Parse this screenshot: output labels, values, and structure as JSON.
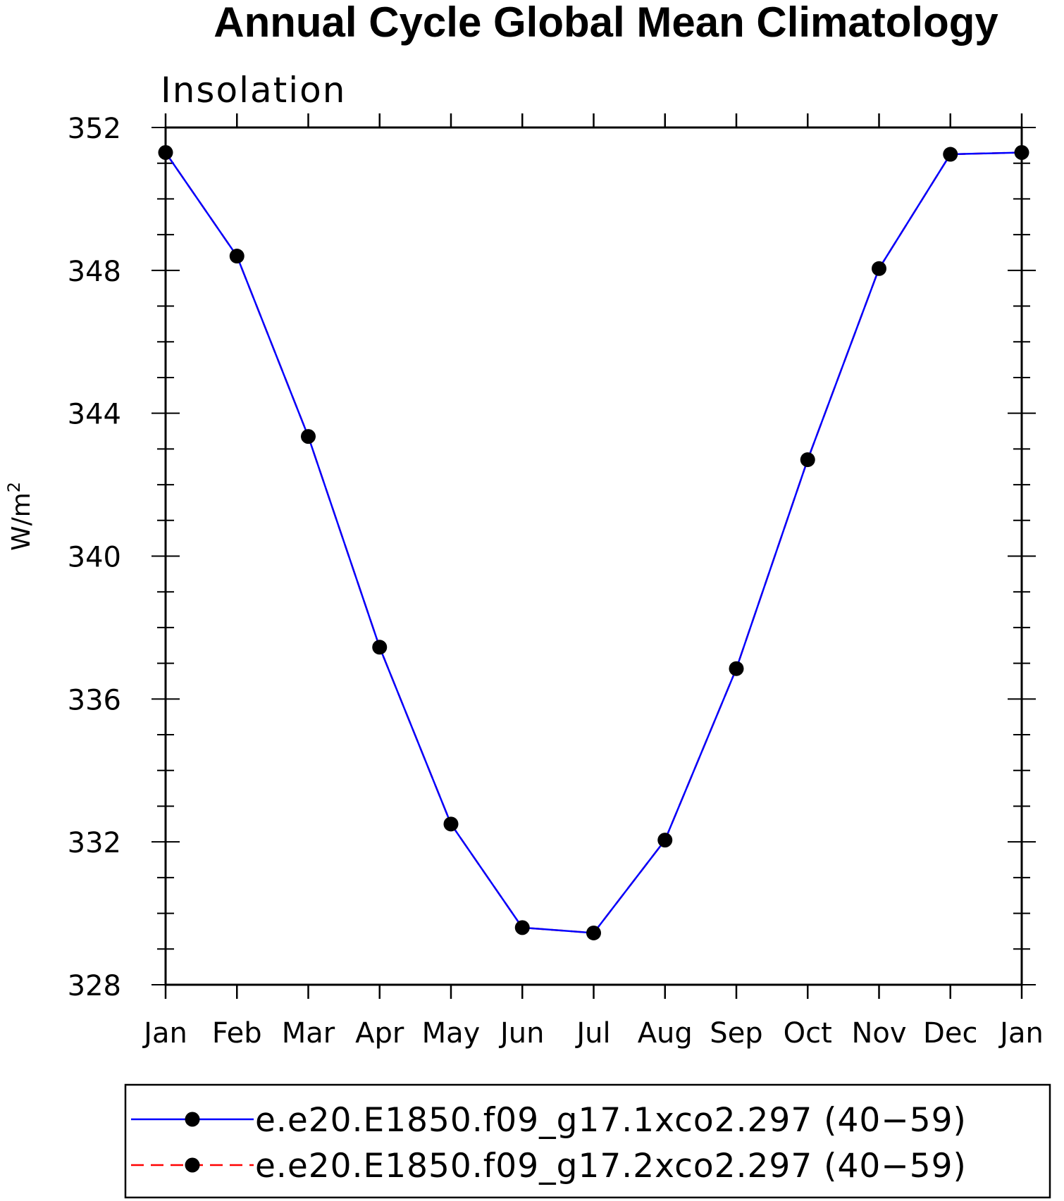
{
  "chart_data": {
    "type": "line",
    "title": "Annual Cycle Global Mean Climatology",
    "subtitle": "Insolation",
    "ylabel_base": "W/m",
    "ylabel_sup": "2",
    "categories": [
      "Jan",
      "Feb",
      "Mar",
      "Apr",
      "May",
      "Jun",
      "Jul",
      "Aug",
      "Sep",
      "Oct",
      "Nov",
      "Dec",
      "Jan"
    ],
    "ylim": [
      328,
      352
    ],
    "yticks": [
      "328",
      "332",
      "336",
      "340",
      "344",
      "348",
      "352"
    ],
    "series": [
      {
        "name": "e.e20.E1850.f09_g17.1xco2.297 (40−59)",
        "color": "#0000ff",
        "line_style": "solid",
        "values": [
          351.3,
          348.4,
          343.35,
          337.45,
          332.5,
          329.6,
          329.45,
          332.05,
          336.85,
          342.7,
          348.05,
          351.25,
          351.3
        ]
      },
      {
        "name": "e.e20.E1850.f09_g17.2xco2.297 (40−59)",
        "color": "#ff0000",
        "line_style": "dashed",
        "values": [
          351.3,
          348.4,
          343.35,
          337.45,
          332.5,
          329.6,
          329.45,
          332.05,
          336.85,
          342.7,
          348.05,
          351.25,
          351.3
        ]
      }
    ],
    "marker_color": "#000000",
    "grid": false,
    "legend_position": "bottom"
  }
}
